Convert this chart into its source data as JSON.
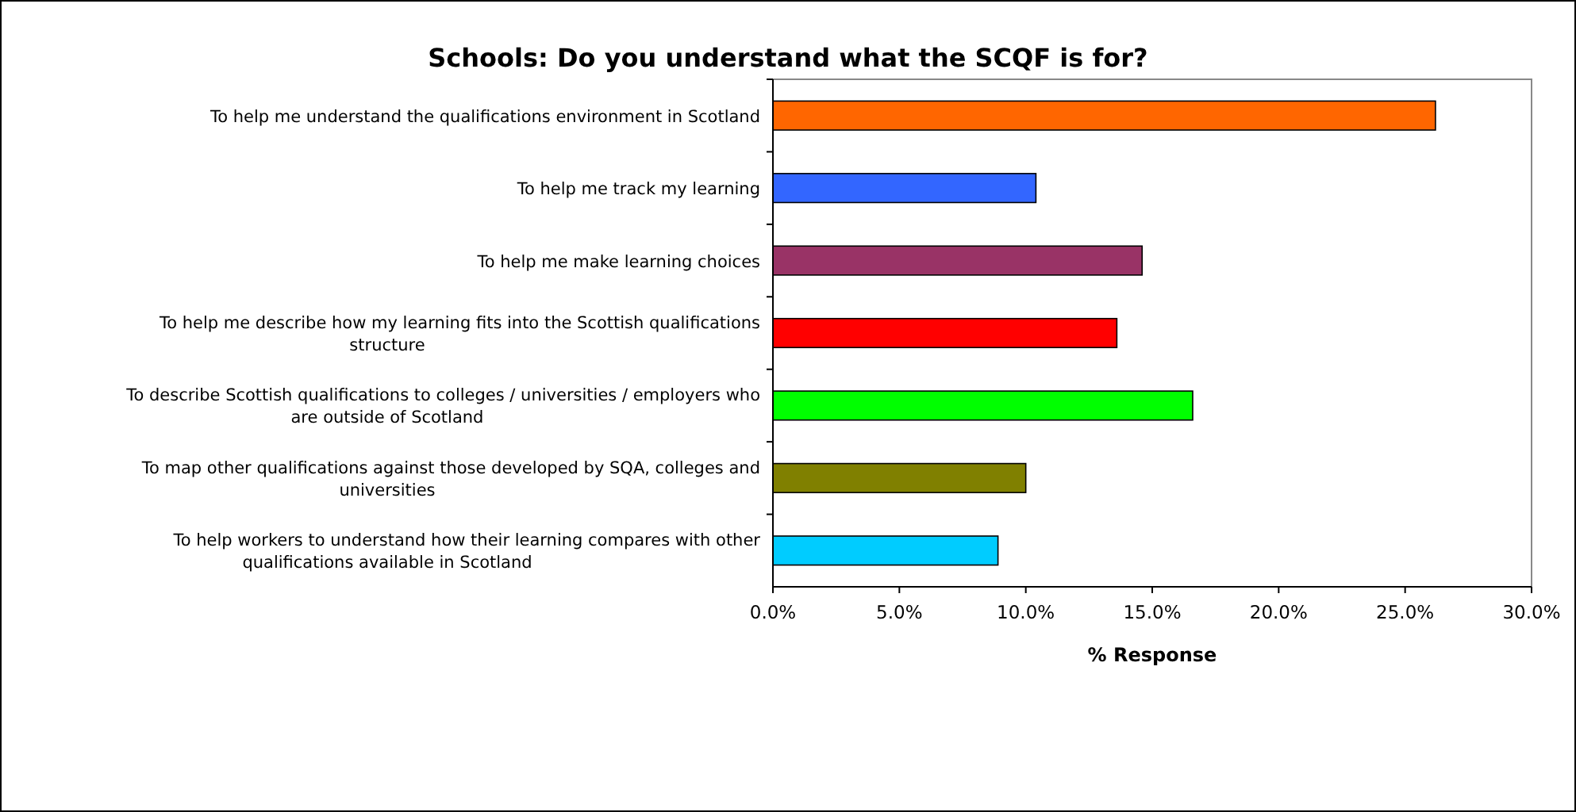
{
  "chart_data": {
    "type": "bar",
    "orientation": "horizontal",
    "title": "Schools: Do you understand what the SCQF is for?",
    "xlabel": "% Response",
    "categories": [
      "To help me understand the qualifications environment in Scotland",
      "To help me track my learning",
      "To help me make learning choices",
      "To help me describe how my learning fits into the Scottish qualifications structure",
      "To describe Scottish qualifications to colleges / universities / employers who are outside of Scotland",
      "To map other qualifications against those developed by SQA, colleges and universities",
      "To help workers to understand how their learning compares with other qualifications available in Scotland"
    ],
    "values": [
      26.2,
      10.4,
      14.6,
      13.6,
      16.6,
      10.0,
      8.9
    ],
    "colors": [
      "#ff6600",
      "#3366ff",
      "#993366",
      "#ff0000",
      "#00ff00",
      "#808000",
      "#00ccff"
    ],
    "xlim": [
      0,
      30
    ],
    "xticks": [
      {
        "value": 0,
        "label": "0.0%"
      },
      {
        "value": 5,
        "label": "5.0%"
      },
      {
        "value": 10,
        "label": "10.0%"
      },
      {
        "value": 15,
        "label": "15.0%"
      },
      {
        "value": 20,
        "label": "20.0%"
      },
      {
        "value": 25,
        "label": "25.0%"
      },
      {
        "value": 30,
        "label": "30.0%"
      }
    ],
    "grid": false
  }
}
